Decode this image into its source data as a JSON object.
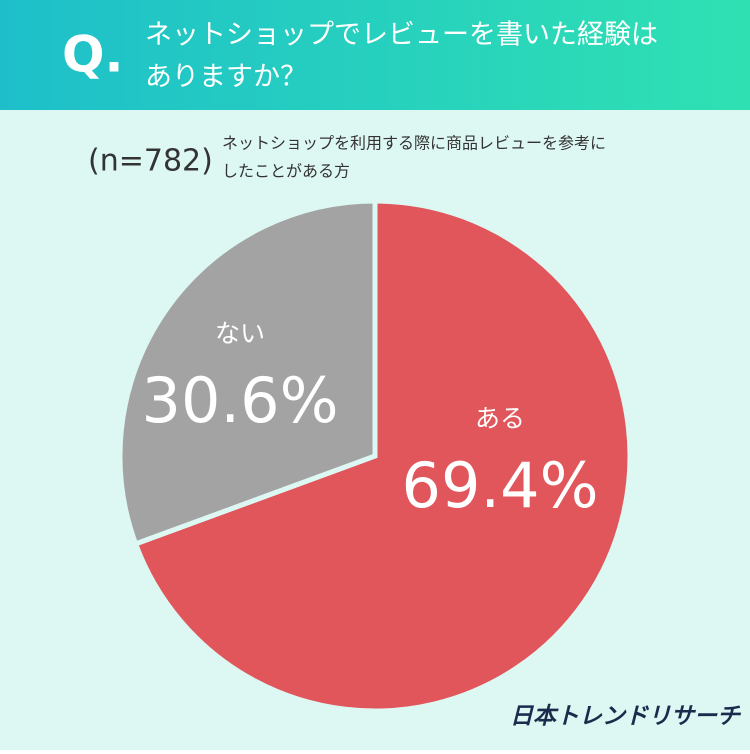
{
  "header": {
    "mark": "Q.",
    "title_lines": [
      "ネットショップでレビューを書いた経験は",
      "ありますか？"
    ]
  },
  "chart_data": {
    "type": "pie",
    "note": "(n=782)",
    "subtitle_lines": [
      "ネットショップを利用する際に商品レビューを参考に",
      "したことがある方"
    ],
    "categories": [
      "ある",
      "ない"
    ],
    "values": [
      69.4,
      30.6
    ],
    "value_labels": [
      "69.4%",
      "30.6%"
    ],
    "colors": [
      "#e0565a",
      "#a3a3a3"
    ]
  },
  "footer": {
    "brand": "日本トレンドリサーチ"
  }
}
